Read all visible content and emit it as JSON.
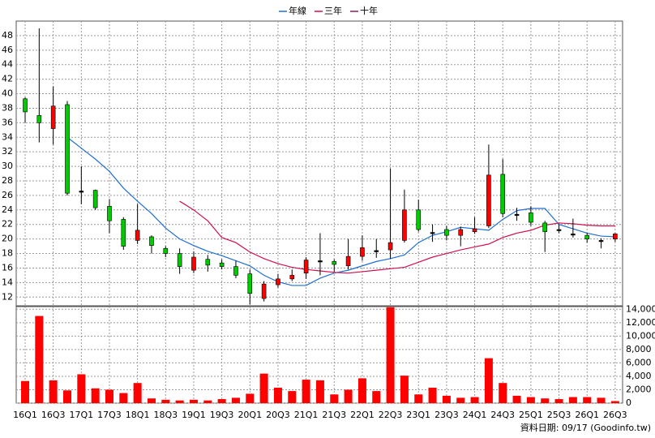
{
  "chart_data": {
    "type": "candlestick",
    "categories": [
      "16Q1",
      null,
      "16Q3",
      null,
      "17Q1",
      null,
      "17Q3",
      null,
      "18Q1",
      null,
      "18Q3",
      null,
      "19Q1",
      null,
      "19Q3",
      null,
      "20Q1",
      null,
      "20Q3",
      null,
      "21Q1",
      null,
      "21Q3",
      null,
      "22Q1",
      null,
      "22Q3",
      null,
      "23Q1",
      null,
      "23Q3",
      null,
      "24Q1",
      null,
      "24Q3",
      null,
      "25Q1",
      null,
      "25Q3",
      null,
      "26Q1",
      null,
      "26Q3"
    ],
    "open": [
      39.3,
      37,
      35.2,
      38.5,
      26.6,
      26.7,
      24.5,
      22.7,
      19.8,
      20.3,
      18.7,
      18,
      15.7,
      17.2,
      16.7,
      16.2,
      15.2,
      11.8,
      13.7,
      14.5,
      15.3,
      17,
      16.9,
      16.3,
      17.6,
      18.4,
      18.5,
      19.8,
      24,
      20.9,
      21.3,
      20.5,
      21,
      21.8,
      28.9,
      23.4,
      23.6,
      22.2,
      21.3,
      20.7,
      20.5,
      19.8,
      20
    ],
    "high": [
      39.5,
      49,
      41,
      39,
      30,
      26.8,
      25.5,
      23,
      24.8,
      20.5,
      19,
      18.7,
      18.3,
      17.8,
      17.2,
      17,
      15.8,
      14.2,
      15.2,
      15.8,
      17.5,
      20.8,
      17.2,
      20,
      20.5,
      20,
      29.7,
      26.8,
      25.4,
      22,
      21.8,
      21.7,
      23,
      33,
      31,
      24.3,
      24.5,
      22.5,
      22,
      22.8,
      20.8,
      20.1,
      20.8
    ],
    "low": [
      36,
      33.3,
      33,
      26,
      24.8,
      24,
      20.8,
      18.5,
      19.3,
      18,
      17.5,
      15.2,
      15.3,
      15.5,
      15.8,
      14.6,
      11,
      11.4,
      13.3,
      14.2,
      14.5,
      15,
      15.5,
      15.8,
      17,
      17.4,
      17.3,
      19.5,
      21,
      19.6,
      19.8,
      19,
      20.7,
      21.5,
      23,
      22.5,
      21.8,
      18.2,
      20.8,
      20.2,
      19.5,
      18.7,
      19.6
    ],
    "close": [
      37.5,
      36,
      38.3,
      26.3,
      26.6,
      24.3,
      22.5,
      19,
      21.2,
      19.1,
      18,
      16.2,
      17.5,
      16.4,
      16.2,
      15,
      12.5,
      13.8,
      14.5,
      15,
      17.1,
      17,
      16.5,
      17.6,
      18.8,
      18.4,
      19.5,
      24,
      21.3,
      20.9,
      20.5,
      21.3,
      21.4,
      28.8,
      23.5,
      23.4,
      22.3,
      21,
      21.3,
      20.7,
      20,
      19.8,
      20.7
    ],
    "up_color": "#ff0000",
    "down_color": "#00cc00",
    "flat_color": "#000000",
    "series": [
      {
        "name": "年線",
        "color": "#1f6fd1",
        "values": [
          null,
          null,
          null,
          34,
          32.5,
          31,
          29.3,
          27,
          25.2,
          23.5,
          21.5,
          20,
          19.1,
          18.3,
          17.7,
          17,
          16.3,
          15,
          14.1,
          13.6,
          13.6,
          14.6,
          15.3,
          15.7,
          16.3,
          16.9,
          17.3,
          17.8,
          19.5,
          20.5,
          21,
          21.6,
          21.4,
          21.2,
          22.7,
          23.9,
          24.2,
          24.2,
          22,
          21.4,
          20.8,
          20.4,
          20.3
        ]
      },
      {
        "name": "三年",
        "color": "#d0104c",
        "values": [
          null,
          null,
          null,
          null,
          null,
          null,
          null,
          null,
          null,
          null,
          null,
          25.2,
          24,
          22.5,
          20.2,
          19.5,
          18.2,
          17.3,
          16.6,
          16.1,
          15.8,
          15.6,
          15.4,
          15.3,
          15.5,
          15.7,
          15.9,
          16.1,
          16.8,
          17.5,
          18,
          18.5,
          18.9,
          19.3,
          20.2,
          20.8,
          21.2,
          21.9,
          22.2,
          22.1,
          21.9,
          21.8,
          21.8
        ]
      },
      {
        "name": "十年",
        "color": "#8b1a6b",
        "values": [
          null,
          null,
          null,
          null,
          null,
          null,
          null,
          null,
          null,
          null,
          null,
          null,
          null,
          null,
          null,
          null,
          null,
          null,
          null,
          null,
          null,
          null,
          null,
          null,
          null,
          null,
          null,
          null,
          null,
          null,
          null,
          null,
          null,
          null,
          null,
          null,
          null,
          null,
          null,
          null,
          null,
          null,
          null
        ]
      }
    ],
    "ylim": [
      10.8,
      50
    ],
    "yticks": [
      12,
      14,
      16,
      18,
      20,
      22,
      24,
      26,
      28,
      30,
      32,
      34,
      36,
      38,
      40,
      42,
      44,
      46,
      48
    ],
    "grid": true,
    "volume": {
      "color": "#ff0000",
      "values": [
        3300,
        13000,
        3400,
        1900,
        4300,
        2200,
        2000,
        1500,
        3000,
        700,
        500,
        400,
        500,
        400,
        600,
        800,
        1400,
        4400,
        2300,
        1800,
        3500,
        3400,
        1300,
        2000,
        3700,
        1800,
        14300,
        4100,
        1300,
        2300,
        1100,
        800,
        900,
        6700,
        3000,
        1100,
        900,
        700,
        600,
        900,
        900,
        800,
        300
      ],
      "ylim": [
        0,
        14400
      ],
      "yticks": [
        0,
        {
          "value": 2000,
          "label": "2,000"
        },
        {
          "value": 4000,
          "label": "4,000"
        },
        {
          "value": 6000,
          "label": "6,000"
        },
        {
          "value": 8000,
          "label": "8,000"
        },
        {
          "value": 10000,
          "label": "10,000"
        },
        {
          "value": 12000,
          "label": "12,000"
        },
        {
          "value": 14000,
          "label": "14,000"
        }
      ]
    },
    "footer": "資料日期: 09/17  (Goodinfo.tw)"
  }
}
